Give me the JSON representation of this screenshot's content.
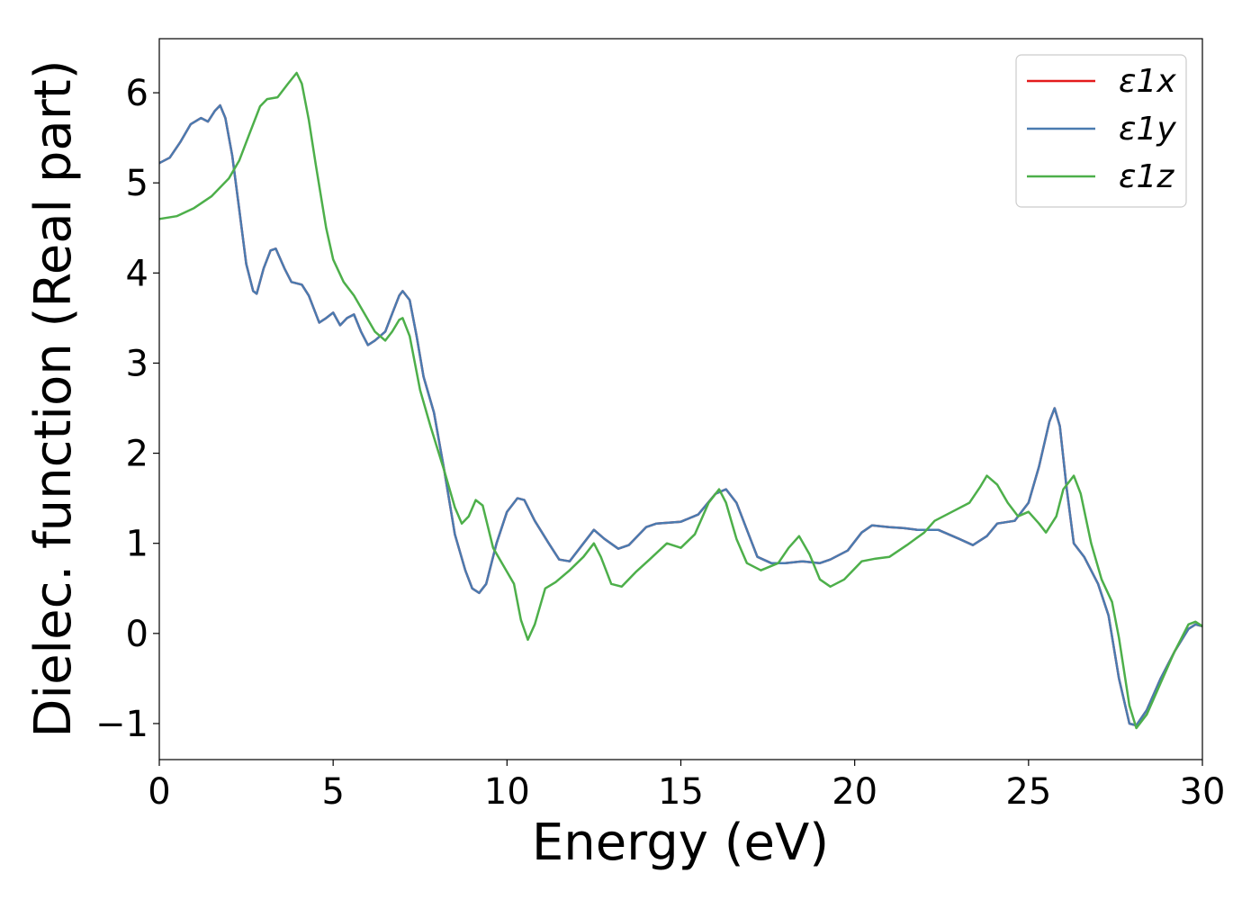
{
  "chart_data": {
    "type": "line",
    "title": "",
    "xlabel": "Energy (eV)",
    "ylabel": "Dielec. function (Real part)",
    "xlim": [
      0,
      30
    ],
    "ylim": [
      -1.4,
      6.6
    ],
    "xticks": [
      0,
      5,
      10,
      15,
      20,
      25,
      30
    ],
    "xtick_labels": [
      "0",
      "5",
      "10",
      "15",
      "20",
      "25",
      "30"
    ],
    "yticks": [
      -1,
      0,
      1,
      2,
      3,
      4,
      5,
      6
    ],
    "ytick_labels": [
      "−1",
      "0",
      "1",
      "2",
      "3",
      "4",
      "5",
      "6"
    ],
    "grid": false,
    "legend_position": "top-right",
    "series": [
      {
        "name": "ε1x",
        "color": "#e41a1c",
        "points": [
          [
            0,
            5.22
          ],
          [
            0.3,
            5.28
          ],
          [
            0.6,
            5.45
          ],
          [
            0.9,
            5.65
          ],
          [
            1.2,
            5.72
          ],
          [
            1.4,
            5.68
          ],
          [
            1.6,
            5.8
          ],
          [
            1.75,
            5.86
          ],
          [
            1.9,
            5.72
          ],
          [
            2.1,
            5.3
          ],
          [
            2.3,
            4.7
          ],
          [
            2.5,
            4.1
          ],
          [
            2.7,
            3.8
          ],
          [
            2.8,
            3.77
          ],
          [
            3.0,
            4.05
          ],
          [
            3.2,
            4.25
          ],
          [
            3.35,
            4.27
          ],
          [
            3.6,
            4.05
          ],
          [
            3.8,
            3.9
          ],
          [
            4.1,
            3.87
          ],
          [
            4.3,
            3.75
          ],
          [
            4.6,
            3.45
          ],
          [
            4.8,
            3.5
          ],
          [
            5.0,
            3.56
          ],
          [
            5.2,
            3.42
          ],
          [
            5.4,
            3.5
          ],
          [
            5.6,
            3.54
          ],
          [
            5.8,
            3.35
          ],
          [
            6.0,
            3.2
          ],
          [
            6.2,
            3.25
          ],
          [
            6.5,
            3.35
          ],
          [
            6.7,
            3.55
          ],
          [
            6.9,
            3.75
          ],
          [
            7.0,
            3.8
          ],
          [
            7.2,
            3.7
          ],
          [
            7.4,
            3.3
          ],
          [
            7.6,
            2.85
          ],
          [
            7.9,
            2.45
          ],
          [
            8.2,
            1.8
          ],
          [
            8.5,
            1.1
          ],
          [
            8.8,
            0.7
          ],
          [
            9.0,
            0.5
          ],
          [
            9.2,
            0.45
          ],
          [
            9.4,
            0.55
          ],
          [
            9.7,
            1.0
          ],
          [
            10.0,
            1.35
          ],
          [
            10.3,
            1.5
          ],
          [
            10.5,
            1.48
          ],
          [
            10.8,
            1.25
          ],
          [
            11.2,
            1.0
          ],
          [
            11.5,
            0.82
          ],
          [
            11.8,
            0.8
          ],
          [
            12.2,
            1.0
          ],
          [
            12.5,
            1.15
          ],
          [
            12.8,
            1.05
          ],
          [
            13.2,
            0.94
          ],
          [
            13.5,
            0.98
          ],
          [
            14.0,
            1.18
          ],
          [
            14.3,
            1.22
          ],
          [
            15.0,
            1.24
          ],
          [
            15.5,
            1.32
          ],
          [
            16.0,
            1.55
          ],
          [
            16.3,
            1.6
          ],
          [
            16.6,
            1.45
          ],
          [
            16.9,
            1.15
          ],
          [
            17.2,
            0.85
          ],
          [
            17.6,
            0.78
          ],
          [
            18.0,
            0.78
          ],
          [
            18.5,
            0.8
          ],
          [
            19.0,
            0.78
          ],
          [
            19.3,
            0.82
          ],
          [
            19.8,
            0.92
          ],
          [
            20.2,
            1.12
          ],
          [
            20.5,
            1.2
          ],
          [
            21.0,
            1.18
          ],
          [
            21.4,
            1.17
          ],
          [
            21.8,
            1.15
          ],
          [
            22.4,
            1.15
          ],
          [
            23.0,
            1.05
          ],
          [
            23.4,
            0.98
          ],
          [
            23.8,
            1.08
          ],
          [
            24.1,
            1.22
          ],
          [
            24.6,
            1.25
          ],
          [
            25.0,
            1.45
          ],
          [
            25.3,
            1.85
          ],
          [
            25.6,
            2.35
          ],
          [
            25.75,
            2.5
          ],
          [
            25.9,
            2.3
          ],
          [
            26.1,
            1.6
          ],
          [
            26.3,
            1.0
          ],
          [
            26.6,
            0.85
          ],
          [
            27.0,
            0.55
          ],
          [
            27.3,
            0.2
          ],
          [
            27.6,
            -0.5
          ],
          [
            27.9,
            -1.0
          ],
          [
            28.1,
            -1.02
          ],
          [
            28.4,
            -0.85
          ],
          [
            28.8,
            -0.5
          ],
          [
            29.2,
            -0.2
          ],
          [
            29.6,
            0.05
          ],
          [
            29.8,
            0.1
          ],
          [
            30.0,
            0.08
          ]
        ]
      },
      {
        "name": "ε1y",
        "color": "#4a7bb0",
        "points": [
          [
            0,
            5.22
          ],
          [
            0.3,
            5.28
          ],
          [
            0.6,
            5.45
          ],
          [
            0.9,
            5.65
          ],
          [
            1.2,
            5.72
          ],
          [
            1.4,
            5.68
          ],
          [
            1.6,
            5.8
          ],
          [
            1.75,
            5.86
          ],
          [
            1.9,
            5.72
          ],
          [
            2.1,
            5.3
          ],
          [
            2.3,
            4.7
          ],
          [
            2.5,
            4.1
          ],
          [
            2.7,
            3.8
          ],
          [
            2.8,
            3.77
          ],
          [
            3.0,
            4.05
          ],
          [
            3.2,
            4.25
          ],
          [
            3.35,
            4.27
          ],
          [
            3.6,
            4.05
          ],
          [
            3.8,
            3.9
          ],
          [
            4.1,
            3.87
          ],
          [
            4.3,
            3.75
          ],
          [
            4.6,
            3.45
          ],
          [
            4.8,
            3.5
          ],
          [
            5.0,
            3.56
          ],
          [
            5.2,
            3.42
          ],
          [
            5.4,
            3.5
          ],
          [
            5.6,
            3.54
          ],
          [
            5.8,
            3.35
          ],
          [
            6.0,
            3.2
          ],
          [
            6.2,
            3.25
          ],
          [
            6.5,
            3.35
          ],
          [
            6.7,
            3.55
          ],
          [
            6.9,
            3.75
          ],
          [
            7.0,
            3.8
          ],
          [
            7.2,
            3.7
          ],
          [
            7.4,
            3.3
          ],
          [
            7.6,
            2.85
          ],
          [
            7.9,
            2.45
          ],
          [
            8.2,
            1.8
          ],
          [
            8.5,
            1.1
          ],
          [
            8.8,
            0.7
          ],
          [
            9.0,
            0.5
          ],
          [
            9.2,
            0.45
          ],
          [
            9.4,
            0.55
          ],
          [
            9.7,
            1.0
          ],
          [
            10.0,
            1.35
          ],
          [
            10.3,
            1.5
          ],
          [
            10.5,
            1.48
          ],
          [
            10.8,
            1.25
          ],
          [
            11.2,
            1.0
          ],
          [
            11.5,
            0.82
          ],
          [
            11.8,
            0.8
          ],
          [
            12.2,
            1.0
          ],
          [
            12.5,
            1.15
          ],
          [
            12.8,
            1.05
          ],
          [
            13.2,
            0.94
          ],
          [
            13.5,
            0.98
          ],
          [
            14.0,
            1.18
          ],
          [
            14.3,
            1.22
          ],
          [
            15.0,
            1.24
          ],
          [
            15.5,
            1.32
          ],
          [
            16.0,
            1.55
          ],
          [
            16.3,
            1.6
          ],
          [
            16.6,
            1.45
          ],
          [
            16.9,
            1.15
          ],
          [
            17.2,
            0.85
          ],
          [
            17.6,
            0.78
          ],
          [
            18.0,
            0.78
          ],
          [
            18.5,
            0.8
          ],
          [
            19.0,
            0.78
          ],
          [
            19.3,
            0.82
          ],
          [
            19.8,
            0.92
          ],
          [
            20.2,
            1.12
          ],
          [
            20.5,
            1.2
          ],
          [
            21.0,
            1.18
          ],
          [
            21.4,
            1.17
          ],
          [
            21.8,
            1.15
          ],
          [
            22.4,
            1.15
          ],
          [
            23.0,
            1.05
          ],
          [
            23.4,
            0.98
          ],
          [
            23.8,
            1.08
          ],
          [
            24.1,
            1.22
          ],
          [
            24.6,
            1.25
          ],
          [
            25.0,
            1.45
          ],
          [
            25.3,
            1.85
          ],
          [
            25.6,
            2.35
          ],
          [
            25.75,
            2.5
          ],
          [
            25.9,
            2.3
          ],
          [
            26.1,
            1.6
          ],
          [
            26.3,
            1.0
          ],
          [
            26.6,
            0.85
          ],
          [
            27.0,
            0.55
          ],
          [
            27.3,
            0.2
          ],
          [
            27.6,
            -0.5
          ],
          [
            27.9,
            -1.0
          ],
          [
            28.1,
            -1.02
          ],
          [
            28.4,
            -0.85
          ],
          [
            28.8,
            -0.5
          ],
          [
            29.2,
            -0.2
          ],
          [
            29.6,
            0.05
          ],
          [
            29.8,
            0.1
          ],
          [
            30.0,
            0.08
          ]
        ]
      },
      {
        "name": "ε1z",
        "color": "#4daf4a",
        "points": [
          [
            0,
            4.6
          ],
          [
            0.5,
            4.63
          ],
          [
            1.0,
            4.72
          ],
          [
            1.5,
            4.85
          ],
          [
            2.0,
            5.05
          ],
          [
            2.3,
            5.25
          ],
          [
            2.6,
            5.55
          ],
          [
            2.9,
            5.85
          ],
          [
            3.1,
            5.93
          ],
          [
            3.4,
            5.95
          ],
          [
            3.7,
            6.1
          ],
          [
            3.95,
            6.22
          ],
          [
            4.1,
            6.1
          ],
          [
            4.3,
            5.7
          ],
          [
            4.5,
            5.2
          ],
          [
            4.8,
            4.5
          ],
          [
            5.0,
            4.15
          ],
          [
            5.3,
            3.9
          ],
          [
            5.6,
            3.75
          ],
          [
            5.9,
            3.55
          ],
          [
            6.2,
            3.35
          ],
          [
            6.5,
            3.25
          ],
          [
            6.7,
            3.35
          ],
          [
            6.9,
            3.48
          ],
          [
            7.0,
            3.5
          ],
          [
            7.2,
            3.3
          ],
          [
            7.5,
            2.7
          ],
          [
            7.8,
            2.3
          ],
          [
            8.2,
            1.8
          ],
          [
            8.5,
            1.4
          ],
          [
            8.7,
            1.22
          ],
          [
            8.9,
            1.3
          ],
          [
            9.1,
            1.48
          ],
          [
            9.3,
            1.42
          ],
          [
            9.6,
            0.95
          ],
          [
            9.9,
            0.75
          ],
          [
            10.2,
            0.55
          ],
          [
            10.4,
            0.15
          ],
          [
            10.6,
            -0.07
          ],
          [
            10.8,
            0.1
          ],
          [
            11.1,
            0.5
          ],
          [
            11.4,
            0.57
          ],
          [
            11.8,
            0.7
          ],
          [
            12.2,
            0.85
          ],
          [
            12.5,
            1.0
          ],
          [
            12.7,
            0.85
          ],
          [
            13.0,
            0.55
          ],
          [
            13.3,
            0.52
          ],
          [
            13.7,
            0.68
          ],
          [
            14.1,
            0.82
          ],
          [
            14.6,
            1.0
          ],
          [
            15.0,
            0.95
          ],
          [
            15.4,
            1.1
          ],
          [
            15.8,
            1.45
          ],
          [
            16.1,
            1.6
          ],
          [
            16.3,
            1.45
          ],
          [
            16.6,
            1.05
          ],
          [
            16.9,
            0.78
          ],
          [
            17.3,
            0.7
          ],
          [
            17.8,
            0.78
          ],
          [
            18.1,
            0.95
          ],
          [
            18.4,
            1.08
          ],
          [
            18.7,
            0.88
          ],
          [
            19.0,
            0.6
          ],
          [
            19.3,
            0.52
          ],
          [
            19.7,
            0.6
          ],
          [
            20.2,
            0.8
          ],
          [
            20.6,
            0.83
          ],
          [
            21.0,
            0.85
          ],
          [
            21.5,
            0.98
          ],
          [
            22.0,
            1.12
          ],
          [
            22.3,
            1.25
          ],
          [
            22.8,
            1.35
          ],
          [
            23.3,
            1.45
          ],
          [
            23.6,
            1.62
          ],
          [
            23.8,
            1.75
          ],
          [
            24.1,
            1.65
          ],
          [
            24.4,
            1.45
          ],
          [
            24.7,
            1.3
          ],
          [
            25.0,
            1.35
          ],
          [
            25.3,
            1.22
          ],
          [
            25.5,
            1.12
          ],
          [
            25.8,
            1.3
          ],
          [
            26.0,
            1.6
          ],
          [
            26.3,
            1.75
          ],
          [
            26.5,
            1.55
          ],
          [
            26.8,
            1.0
          ],
          [
            27.1,
            0.6
          ],
          [
            27.4,
            0.35
          ],
          [
            27.6,
            -0.05
          ],
          [
            27.9,
            -0.8
          ],
          [
            28.1,
            -1.05
          ],
          [
            28.4,
            -0.9
          ],
          [
            28.8,
            -0.55
          ],
          [
            29.2,
            -0.2
          ],
          [
            29.6,
            0.1
          ],
          [
            29.8,
            0.13
          ],
          [
            30.0,
            0.08
          ]
        ]
      }
    ]
  }
}
